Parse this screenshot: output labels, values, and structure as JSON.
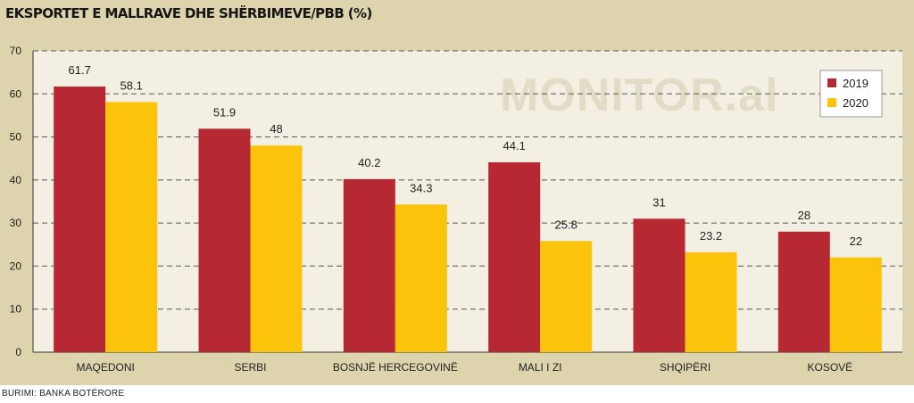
{
  "title": "EKSPORTET E MALLRAVE DHE SHËRBIMEVE/PBB (%)",
  "source": "BURIMI: BANKA BOTËRORE",
  "watermark": "MONITOR.al",
  "colors": {
    "series_2019": "#b72932",
    "series_2020": "#fcc30b",
    "frame": "#ddd4ae",
    "plot": "#f3efe2"
  },
  "chart_data": {
    "type": "bar",
    "categories": [
      "MAQEDONI",
      "SERBI",
      "BOSNJË HERCEGOVINË",
      "MALI I ZI",
      "SHQIPËRI",
      "KOSOVË"
    ],
    "series": [
      {
        "name": "2019",
        "values": [
          61.7,
          51.9,
          40.2,
          44.1,
          31,
          28
        ]
      },
      {
        "name": "2020",
        "values": [
          58.1,
          48,
          34.3,
          25.8,
          23.2,
          22
        ]
      }
    ],
    "ylim": [
      0,
      70
    ],
    "yticks": [
      0,
      10,
      20,
      30,
      40,
      50,
      60,
      70
    ],
    "grid": true,
    "legend_position": "top-right"
  }
}
